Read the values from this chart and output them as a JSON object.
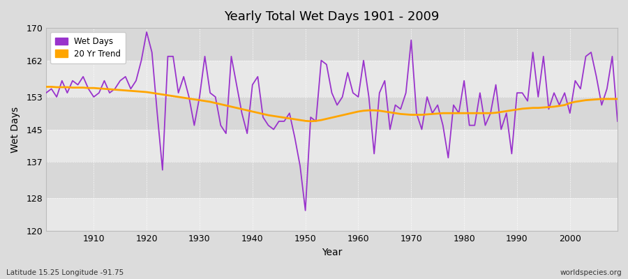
{
  "title": "Yearly Total Wet Days 1901 - 2009",
  "xlabel": "Year",
  "ylabel": "Wet Days",
  "legend_wet": "Wet Days",
  "legend_trend": "20 Yr Trend",
  "lat_lon_label": "Latitude 15.25 Longitude -91.75",
  "watermark": "worldspecies.org",
  "ylim": [
    120,
    170
  ],
  "yticks": [
    120,
    128,
    137,
    145,
    153,
    162,
    170
  ],
  "line_color": "#9933cc",
  "trend_color": "#ffa500",
  "bg_color": "#dcdcdc",
  "plot_bg_light": "#e8e8e8",
  "plot_bg_dark": "#d8d8d8",
  "years": [
    1901,
    1902,
    1903,
    1904,
    1905,
    1906,
    1907,
    1908,
    1909,
    1910,
    1911,
    1912,
    1913,
    1914,
    1915,
    1916,
    1917,
    1918,
    1919,
    1920,
    1921,
    1922,
    1923,
    1924,
    1925,
    1926,
    1927,
    1928,
    1929,
    1930,
    1931,
    1932,
    1933,
    1934,
    1935,
    1936,
    1937,
    1938,
    1939,
    1940,
    1941,
    1942,
    1943,
    1944,
    1945,
    1946,
    1947,
    1948,
    1949,
    1950,
    1951,
    1952,
    1953,
    1954,
    1955,
    1956,
    1957,
    1958,
    1959,
    1960,
    1961,
    1962,
    1963,
    1964,
    1965,
    1966,
    1967,
    1968,
    1969,
    1970,
    1971,
    1972,
    1973,
    1974,
    1975,
    1976,
    1977,
    1978,
    1979,
    1980,
    1981,
    1982,
    1983,
    1984,
    1985,
    1986,
    1987,
    1988,
    1989,
    1990,
    1991,
    1992,
    1993,
    1994,
    1995,
    1996,
    1997,
    1998,
    1999,
    2000,
    2001,
    2002,
    2003,
    2004,
    2005,
    2006,
    2007,
    2008,
    2009
  ],
  "wet_days": [
    154,
    155,
    153,
    157,
    154,
    157,
    156,
    158,
    155,
    153,
    154,
    157,
    154,
    155,
    157,
    158,
    155,
    157,
    162,
    169,
    164,
    149,
    135,
    163,
    163,
    154,
    158,
    153,
    146,
    153,
    163,
    154,
    153,
    146,
    144,
    163,
    156,
    149,
    144,
    156,
    158,
    148,
    146,
    145,
    147,
    147,
    149,
    143,
    136,
    125,
    148,
    147,
    162,
    161,
    154,
    151,
    153,
    159,
    154,
    153,
    162,
    153,
    139,
    154,
    157,
    145,
    151,
    150,
    154,
    167,
    149,
    145,
    153,
    149,
    151,
    146,
    138,
    151,
    149,
    157,
    146,
    146,
    154,
    146,
    149,
    156,
    145,
    149,
    139,
    154,
    154,
    152,
    164,
    153,
    163,
    150,
    154,
    151,
    154,
    149,
    157,
    155,
    163,
    164,
    158,
    151,
    155,
    163,
    147
  ],
  "trend_values": [
    155.5,
    155.5,
    155.4,
    155.4,
    155.4,
    155.3,
    155.3,
    155.3,
    155.2,
    155.2,
    155.1,
    155.0,
    154.9,
    154.8,
    154.7,
    154.6,
    154.5,
    154.4,
    154.3,
    154.2,
    154.0,
    153.8,
    153.6,
    153.4,
    153.2,
    153.0,
    152.8,
    152.6,
    152.4,
    152.2,
    152.0,
    151.8,
    151.5,
    151.2,
    150.9,
    150.6,
    150.3,
    150.0,
    149.7,
    149.4,
    149.1,
    148.8,
    148.5,
    148.3,
    148.1,
    147.9,
    147.7,
    147.5,
    147.3,
    147.1,
    147.0,
    147.1,
    147.3,
    147.6,
    147.9,
    148.2,
    148.5,
    148.8,
    149.1,
    149.4,
    149.6,
    149.7,
    149.7,
    149.6,
    149.4,
    149.2,
    149.0,
    148.8,
    148.7,
    148.6,
    148.6,
    148.6,
    148.7,
    148.8,
    148.9,
    149.0,
    149.0,
    149.0,
    149.0,
    149.0,
    149.0,
    149.0,
    149.0,
    149.0,
    149.0,
    149.1,
    149.3,
    149.5,
    149.7,
    149.9,
    150.1,
    150.2,
    150.3,
    150.3,
    150.4,
    150.5,
    150.6,
    150.8,
    151.0,
    151.5,
    151.8,
    152.0,
    152.2,
    152.3,
    152.4,
    152.5,
    152.5,
    152.5,
    152.5
  ]
}
